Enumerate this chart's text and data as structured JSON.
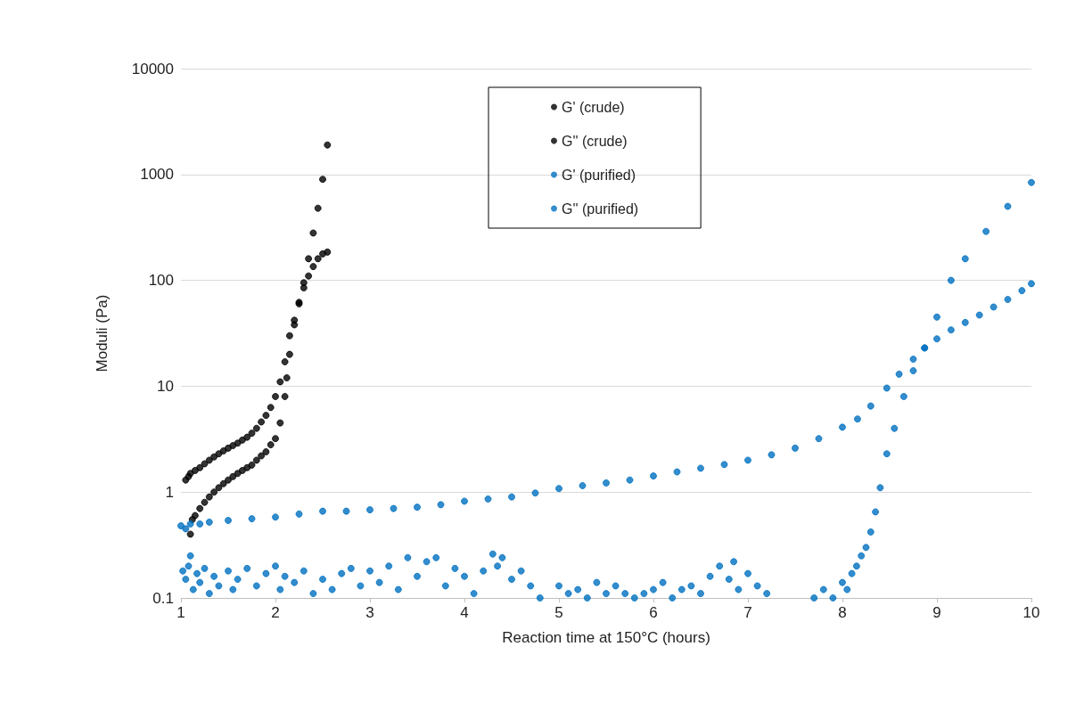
{
  "chart_data": {
    "type": "scatter",
    "xlabel": "Reaction time at 150°C (hours)",
    "ylabel": "Moduli (Pa)",
    "log": "y",
    "grid": "y",
    "legend": "top",
    "marker": "circle",
    "xlim": [
      1,
      10
    ],
    "xticks": [
      1,
      2,
      3,
      4,
      5,
      6,
      7,
      8,
      9,
      10
    ],
    "ylim": [
      0.1,
      10000
    ],
    "yticks": [
      0.1,
      1,
      10,
      100,
      1000,
      10000
    ],
    "series": [
      {
        "name": "G' (crude)",
        "color": "#000000",
        "x": [
          1.1,
          1.12,
          1.15,
          1.2,
          1.25,
          1.3,
          1.35,
          1.4,
          1.45,
          1.5,
          1.55,
          1.6,
          1.65,
          1.7,
          1.75,
          1.8,
          1.85,
          1.9,
          1.95,
          2.0,
          2.05,
          2.1,
          2.12,
          2.15,
          2.2,
          2.25,
          2.3,
          2.35,
          2.4,
          2.45,
          2.5,
          2.55
        ],
        "values": [
          0.4,
          0.55,
          0.6,
          0.7,
          0.8,
          0.9,
          1.0,
          1.1,
          1.2,
          1.3,
          1.4,
          1.5,
          1.6,
          1.7,
          1.8,
          2.0,
          2.2,
          2.4,
          2.8,
          3.2,
          4.5,
          8,
          12,
          20,
          38,
          60,
          95,
          160,
          280,
          480,
          900,
          1900
        ]
      },
      {
        "name": "G'' (crude)",
        "color": "#000000",
        "x": [
          1.05,
          1.08,
          1.1,
          1.15,
          1.2,
          1.25,
          1.3,
          1.35,
          1.4,
          1.45,
          1.5,
          1.55,
          1.6,
          1.65,
          1.7,
          1.75,
          1.8,
          1.85,
          1.9,
          1.95,
          2.0,
          2.05,
          2.1,
          2.15,
          2.2,
          2.25,
          2.3,
          2.35,
          2.4,
          2.45,
          2.5,
          2.55
        ],
        "values": [
          1.3,
          1.4,
          1.5,
          1.6,
          1.7,
          1.85,
          2.0,
          2.15,
          2.3,
          2.45,
          2.6,
          2.75,
          2.9,
          3.1,
          3.3,
          3.6,
          4.0,
          4.6,
          5.3,
          6.3,
          8,
          11,
          17,
          30,
          42,
          62,
          85,
          110,
          135,
          160,
          178,
          185
        ]
      },
      {
        "name": "G' (purified)",
        "color": "#0070c0",
        "x": [
          1.02,
          1.05,
          1.08,
          1.1,
          1.13,
          1.17,
          1.2,
          1.25,
          1.3,
          1.35,
          1.4,
          1.5,
          1.55,
          1.6,
          1.7,
          1.8,
          1.9,
          2.0,
          2.05,
          2.1,
          2.2,
          2.3,
          2.4,
          2.5,
          2.6,
          2.7,
          2.8,
          2.9,
          3.0,
          3.1,
          3.2,
          3.3,
          3.4,
          3.5,
          3.6,
          3.7,
          3.8,
          3.9,
          4.0,
          4.1,
          4.2,
          4.3,
          4.35,
          4.4,
          4.5,
          4.6,
          4.7,
          4.8,
          5.0,
          5.1,
          5.2,
          5.3,
          5.4,
          5.5,
          5.6,
          5.7,
          5.8,
          5.9,
          6.0,
          6.1,
          6.2,
          6.3,
          6.4,
          6.5,
          6.6,
          6.7,
          6.8,
          6.85,
          6.9,
          7.0,
          7.1,
          7.2,
          7.7,
          7.8,
          7.9,
          8.0,
          8.05,
          8.1,
          8.15,
          8.2,
          8.25,
          8.3,
          8.35,
          8.4,
          8.47,
          8.55,
          8.65,
          8.75,
          8.87,
          9.0,
          9.15,
          9.3,
          9.52,
          9.75,
          10.0
        ],
        "values": [
          0.18,
          0.15,
          0.2,
          0.25,
          0.12,
          0.17,
          0.14,
          0.19,
          0.11,
          0.16,
          0.13,
          0.18,
          0.12,
          0.15,
          0.19,
          0.13,
          0.17,
          0.2,
          0.12,
          0.16,
          0.14,
          0.18,
          0.11,
          0.15,
          0.12,
          0.17,
          0.19,
          0.13,
          0.18,
          0.14,
          0.2,
          0.12,
          0.24,
          0.16,
          0.22,
          0.24,
          0.13,
          0.19,
          0.16,
          0.11,
          0.18,
          0.26,
          0.2,
          0.24,
          0.15,
          0.18,
          0.13,
          0.1,
          0.13,
          0.11,
          0.12,
          0.1,
          0.14,
          0.11,
          0.13,
          0.11,
          0.1,
          0.11,
          0.12,
          0.14,
          0.1,
          0.12,
          0.13,
          0.11,
          0.16,
          0.2,
          0.15,
          0.22,
          0.12,
          0.17,
          0.13,
          0.11,
          0.1,
          0.12,
          0.1,
          0.14,
          0.12,
          0.17,
          0.2,
          0.25,
          0.3,
          0.42,
          0.65,
          1.1,
          2.3,
          4.0,
          8,
          14,
          23,
          45,
          100,
          160,
          290,
          500,
          840
        ]
      },
      {
        "name": "G'' (purified)",
        "color": "#0070c0",
        "x": [
          1.0,
          1.05,
          1.1,
          1.2,
          1.3,
          1.5,
          1.75,
          2.0,
          2.25,
          2.5,
          2.75,
          3.0,
          3.25,
          3.5,
          3.75,
          4.0,
          4.25,
          4.5,
          4.75,
          5.0,
          5.25,
          5.5,
          5.75,
          6.0,
          6.25,
          6.5,
          6.75,
          7.0,
          7.25,
          7.5,
          7.75,
          8.0,
          8.16,
          8.3,
          8.47,
          8.6,
          8.75,
          8.87,
          9.0,
          9.15,
          9.3,
          9.45,
          9.6,
          9.75,
          9.9,
          10.0
        ],
        "values": [
          0.48,
          0.45,
          0.5,
          0.5,
          0.52,
          0.54,
          0.56,
          0.58,
          0.62,
          0.66,
          0.66,
          0.68,
          0.7,
          0.72,
          0.76,
          0.82,
          0.86,
          0.9,
          0.98,
          1.08,
          1.15,
          1.22,
          1.3,
          1.42,
          1.55,
          1.68,
          1.82,
          2.0,
          2.25,
          2.6,
          3.2,
          4.1,
          4.9,
          6.5,
          9.6,
          13,
          18,
          23,
          28,
          34,
          40,
          47,
          56,
          66,
          80,
          93
        ]
      }
    ]
  }
}
